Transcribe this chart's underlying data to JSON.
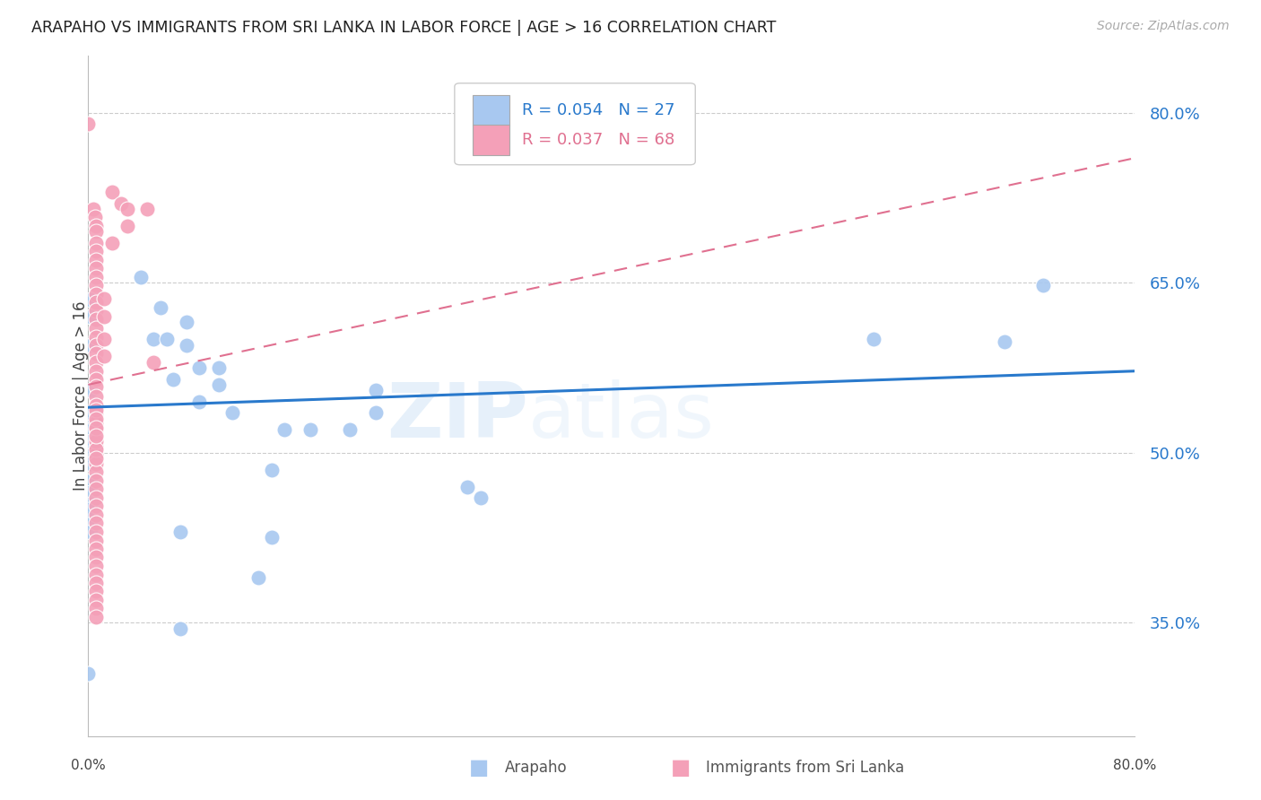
{
  "title": "ARAPAHO VS IMMIGRANTS FROM SRI LANKA IN LABOR FORCE | AGE > 16 CORRELATION CHART",
  "source": "Source: ZipAtlas.com",
  "ylabel": "In Labor Force | Age > 16",
  "xlim": [
    0.0,
    0.8
  ],
  "ylim": [
    0.25,
    0.85
  ],
  "yticks": [
    0.35,
    0.5,
    0.65,
    0.8
  ],
  "ytick_labels": [
    "35.0%",
    "50.0%",
    "65.0%",
    "80.0%"
  ],
  "blue_color": "#A8C8F0",
  "pink_color": "#F4A0B8",
  "blue_line_color": "#2979CC",
  "pink_line_color": "#E07090",
  "watermark_zip": "ZIP",
  "watermark_atlas": "atlas",
  "arapaho_points": [
    [
      0.002,
      0.635
    ],
    [
      0.002,
      0.595
    ],
    [
      0.002,
      0.555
    ],
    [
      0.002,
      0.525
    ],
    [
      0.002,
      0.508
    ],
    [
      0.002,
      0.5
    ],
    [
      0.002,
      0.49
    ],
    [
      0.002,
      0.475
    ],
    [
      0.002,
      0.535
    ],
    [
      0.002,
      0.62
    ],
    [
      0.002,
      0.52
    ],
    [
      0.002,
      0.51
    ],
    [
      0.002,
      0.465
    ],
    [
      0.002,
      0.455
    ],
    [
      0.002,
      0.44
    ],
    [
      0.002,
      0.43
    ],
    [
      0.04,
      0.655
    ],
    [
      0.05,
      0.6
    ],
    [
      0.055,
      0.628
    ],
    [
      0.06,
      0.6
    ],
    [
      0.065,
      0.565
    ],
    [
      0.075,
      0.615
    ],
    [
      0.075,
      0.595
    ],
    [
      0.085,
      0.545
    ],
    [
      0.085,
      0.575
    ],
    [
      0.1,
      0.575
    ],
    [
      0.1,
      0.56
    ],
    [
      0.11,
      0.535
    ],
    [
      0.14,
      0.485
    ],
    [
      0.15,
      0.52
    ],
    [
      0.17,
      0.52
    ],
    [
      0.2,
      0.52
    ],
    [
      0.22,
      0.535
    ],
    [
      0.22,
      0.555
    ],
    [
      0.29,
      0.47
    ],
    [
      0.3,
      0.46
    ],
    [
      0.6,
      0.6
    ],
    [
      0.7,
      0.598
    ],
    [
      0.73,
      0.648
    ],
    [
      0.0,
      0.45
    ],
    [
      0.07,
      0.43
    ],
    [
      0.13,
      0.39
    ],
    [
      0.14,
      0.425
    ],
    [
      0.0,
      0.305
    ],
    [
      0.07,
      0.345
    ]
  ],
  "srilanka_points": [
    [
      0.0,
      0.79
    ],
    [
      0.004,
      0.715
    ],
    [
      0.005,
      0.708
    ],
    [
      0.006,
      0.7
    ],
    [
      0.006,
      0.695
    ],
    [
      0.006,
      0.685
    ],
    [
      0.006,
      0.678
    ],
    [
      0.006,
      0.67
    ],
    [
      0.006,
      0.663
    ],
    [
      0.006,
      0.655
    ],
    [
      0.006,
      0.648
    ],
    [
      0.006,
      0.64
    ],
    [
      0.006,
      0.633
    ],
    [
      0.006,
      0.626
    ],
    [
      0.006,
      0.618
    ],
    [
      0.006,
      0.61
    ],
    [
      0.006,
      0.602
    ],
    [
      0.006,
      0.595
    ],
    [
      0.006,
      0.588
    ],
    [
      0.006,
      0.58
    ],
    [
      0.006,
      0.572
    ],
    [
      0.006,
      0.565
    ],
    [
      0.006,
      0.558
    ],
    [
      0.006,
      0.55
    ],
    [
      0.006,
      0.542
    ],
    [
      0.006,
      0.535
    ],
    [
      0.006,
      0.527
    ],
    [
      0.006,
      0.52
    ],
    [
      0.006,
      0.512
    ],
    [
      0.006,
      0.505
    ],
    [
      0.006,
      0.498
    ],
    [
      0.006,
      0.49
    ],
    [
      0.006,
      0.483
    ],
    [
      0.006,
      0.475
    ],
    [
      0.006,
      0.468
    ],
    [
      0.006,
      0.46
    ],
    [
      0.006,
      0.453
    ],
    [
      0.006,
      0.445
    ],
    [
      0.006,
      0.438
    ],
    [
      0.006,
      0.43
    ],
    [
      0.006,
      0.422
    ],
    [
      0.006,
      0.415
    ],
    [
      0.006,
      0.408
    ],
    [
      0.006,
      0.4
    ],
    [
      0.006,
      0.392
    ],
    [
      0.006,
      0.385
    ],
    [
      0.006,
      0.378
    ],
    [
      0.006,
      0.37
    ],
    [
      0.006,
      0.363
    ],
    [
      0.006,
      0.355
    ],
    [
      0.018,
      0.73
    ],
    [
      0.018,
      0.685
    ],
    [
      0.025,
      0.72
    ],
    [
      0.03,
      0.715
    ],
    [
      0.03,
      0.7
    ],
    [
      0.045,
      0.715
    ],
    [
      0.05,
      0.58
    ],
    [
      0.006,
      0.51
    ],
    [
      0.006,
      0.503
    ],
    [
      0.006,
      0.538
    ],
    [
      0.006,
      0.53
    ],
    [
      0.006,
      0.522
    ],
    [
      0.006,
      0.515
    ],
    [
      0.006,
      0.495
    ],
    [
      0.012,
      0.636
    ],
    [
      0.012,
      0.62
    ],
    [
      0.012,
      0.6
    ],
    [
      0.012,
      0.585
    ]
  ],
  "blue_trend_x": [
    0.0,
    0.8
  ],
  "blue_trend_y": [
    0.54,
    0.572
  ],
  "pink_trend_x": [
    0.0,
    0.8
  ],
  "pink_trend_y": [
    0.56,
    0.76
  ]
}
